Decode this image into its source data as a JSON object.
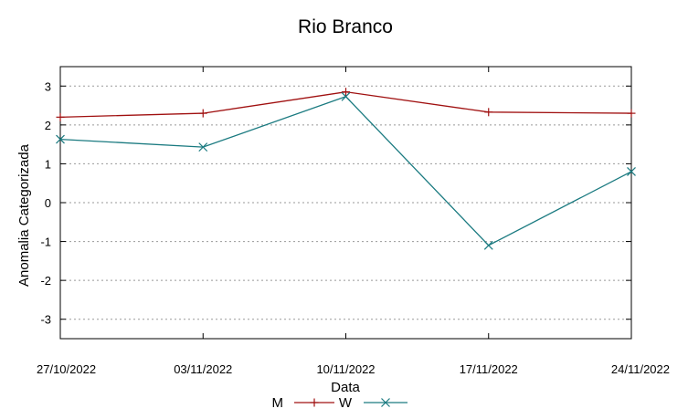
{
  "chart_data": {
    "type": "line",
    "title": "Rio Branco",
    "xlabel": "Data",
    "ylabel": "Anomalia Categorizada",
    "categories": [
      "27/10/2022",
      "03/11/2022",
      "10/11/2022",
      "17/11/2022",
      "24/11/2022"
    ],
    "ylim": [
      -3.5,
      3.5
    ],
    "yticks": [
      -3,
      -2,
      -1,
      0,
      1,
      2,
      3
    ],
    "grid": "horizontal-dotted",
    "legend": "bottom",
    "series": [
      {
        "name": "M",
        "values": [
          2.2,
          2.3,
          2.85,
          2.33,
          2.3
        ],
        "color": "#a01010",
        "marker": "plus"
      },
      {
        "name": "W",
        "values": [
          1.63,
          1.43,
          2.73,
          -1.1,
          0.8
        ],
        "color": "#1a7a80",
        "marker": "cross"
      }
    ]
  }
}
